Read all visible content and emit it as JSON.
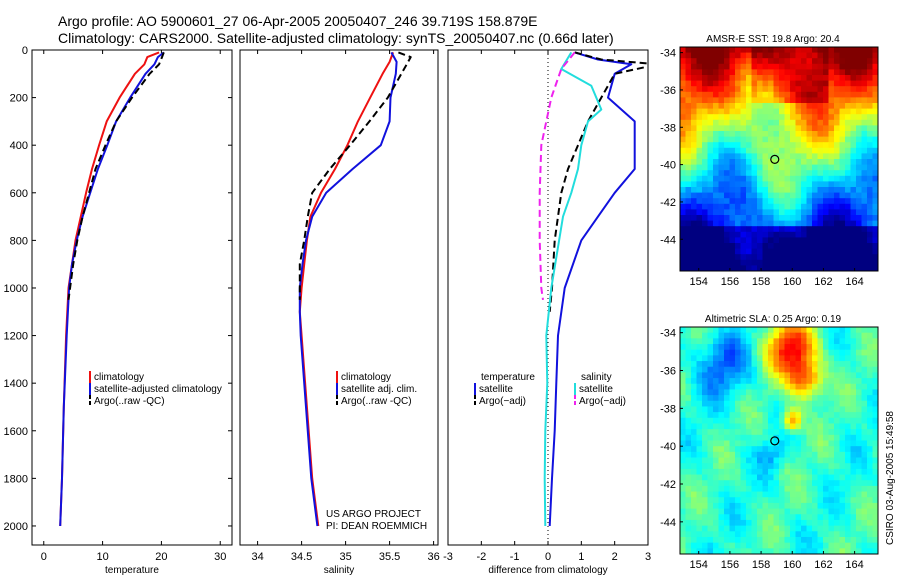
{
  "header": {
    "line1": "Argo profile: AO 5900601_27 06-Apr-2005 20050407_246 39.719S 158.879E",
    "line2": "Climatology: CARS2000. Satellite-adjusted climatology: synTS_20050407.nc (0.66d later)"
  },
  "side_note": "CSIRO 03-Aug-2005 15:49:58",
  "credits": [
    "US ARGO PROJECT",
    "PI: DEAN ROEMMICH"
  ],
  "colors": {
    "red": "#ee1111",
    "blue": "#1111dd",
    "black": "#000000",
    "cyan": "#22dddd",
    "magenta": "#ee22ee"
  },
  "chart_data": [
    {
      "type": "line",
      "id": "temperature",
      "xlabel": "temperature",
      "ylabel": "",
      "xlim": [
        -2,
        32
      ],
      "ylim": [
        2080,
        0
      ],
      "xticks": [
        0,
        10,
        20,
        30
      ],
      "yticks": [
        0,
        200,
        400,
        600,
        800,
        1000,
        1200,
        1400,
        1600,
        1800,
        2000
      ],
      "legend": {
        "position": "lower-right",
        "entries": [
          "climatology",
          "satellite-adjusted climatology",
          "Argo(..raw  -QC)"
        ]
      },
      "series": [
        {
          "name": "climatology",
          "color": "red",
          "dash": false,
          "x": [
            19.6,
            17.6,
            17.1,
            15.5,
            12.9,
            10.7,
            9.4,
            8.2,
            7.2,
            6.3,
            5.4,
            4.8,
            4.2,
            3.8,
            3.4,
            3.1,
            2.8
          ],
          "y": [
            10,
            30,
            60,
            100,
            200,
            300,
            400,
            500,
            600,
            700,
            800,
            900,
            1000,
            1200,
            1500,
            1800,
            2000
          ]
        },
        {
          "name": "satellite-adjusted climatology",
          "color": "blue",
          "dash": false,
          "x": [
            20.4,
            19.4,
            18.8,
            17.3,
            14.7,
            12.3,
            10.8,
            9.2,
            7.9,
            6.6,
            5.6,
            4.8,
            4.3,
            3.9,
            3.4,
            3.1,
            2.8
          ],
          "y": [
            10,
            30,
            60,
            100,
            200,
            300,
            400,
            500,
            600,
            700,
            800,
            900,
            1000,
            1200,
            1500,
            1800,
            2000
          ]
        },
        {
          "name": "Argo(..raw  -QC)",
          "color": "black",
          "dash": true,
          "x": [
            20.4,
            20.1,
            19.6,
            18.0,
            15.0,
            12.3,
            10.5,
            8.8,
            7.7,
            6.6,
            5.7,
            5.0,
            4.2
          ],
          "y": [
            10,
            30,
            60,
            100,
            200,
            300,
            400,
            500,
            600,
            700,
            800,
            900,
            1050
          ]
        }
      ]
    },
    {
      "type": "line",
      "id": "salinity",
      "xlabel": "salinity",
      "ylabel": "",
      "xlim": [
        33.8,
        36.05
      ],
      "ylim": [
        2080,
        0
      ],
      "xticks": [
        34,
        34.5,
        35,
        35.5,
        36
      ],
      "yticks": [],
      "legend": {
        "position": "lower-right",
        "entries": [
          "climatology",
          "satellite adj. clim.",
          "Argo(..raw  -QC)"
        ]
      },
      "series": [
        {
          "name": "climatology",
          "color": "red",
          "dash": false,
          "x": [
            35.54,
            35.5,
            35.42,
            35.28,
            35.14,
            35.02,
            34.88,
            34.72,
            34.6,
            34.56,
            34.53,
            34.5,
            34.48,
            34.5,
            34.56,
            34.62,
            34.69
          ],
          "y": [
            10,
            50,
            100,
            200,
            300,
            400,
            500,
            600,
            700,
            800,
            900,
            1000,
            1100,
            1200,
            1500,
            1800,
            2000
          ]
        },
        {
          "name": "satellite adj. clim.",
          "color": "blue",
          "dash": false,
          "x": [
            35.52,
            35.58,
            35.57,
            35.51,
            35.5,
            35.4,
            35.08,
            34.78,
            34.62,
            34.55,
            34.51,
            34.48,
            34.48,
            34.49,
            34.55,
            34.61,
            34.68
          ],
          "y": [
            10,
            50,
            100,
            200,
            300,
            400,
            500,
            600,
            700,
            800,
            900,
            1000,
            1100,
            1200,
            1500,
            1800,
            2000
          ]
        },
        {
          "name": "Argo(..raw  -QC)",
          "color": "black",
          "dash": true,
          "x": [
            35.6,
            35.74,
            35.68,
            35.48,
            35.27,
            35.05,
            34.82,
            34.62,
            34.57,
            34.53,
            34.48,
            34.48
          ],
          "y": [
            10,
            30,
            70,
            200,
            300,
            400,
            500,
            600,
            700,
            800,
            900,
            1050
          ]
        }
      ]
    },
    {
      "type": "line",
      "id": "difference",
      "xlabel": "difference from climatology",
      "ylabel": "",
      "xlim": [
        -3,
        3
      ],
      "ylim": [
        2080,
        0
      ],
      "xticks": [
        -3,
        -2,
        -1,
        0,
        1,
        2,
        3
      ],
      "yticks": [],
      "zero_line": true,
      "legend": {
        "position": "lower",
        "groups": [
          {
            "title": "temperature",
            "entries": [
              "satellite",
              "Argo(−adj)"
            ]
          },
          {
            "title": "salinity",
            "entries": [
              "satellite",
              "Argo(−adj)"
            ]
          }
        ]
      },
      "series": [
        {
          "name": "satellite",
          "group": "temperature",
          "color": "blue",
          "dash": false,
          "x": [
            0.8,
            1.5,
            2.5,
            2.0,
            1.8,
            2.6,
            2.6,
            2.6,
            2.0,
            1.5,
            1.0,
            0.5,
            0.3,
            0.25,
            0.2,
            0.12,
            0.05
          ],
          "y": [
            10,
            40,
            60,
            100,
            200,
            300,
            400,
            500,
            600,
            700,
            800,
            1000,
            1200,
            1400,
            1600,
            1800,
            2000
          ]
        },
        {
          "name": "Argo(−adj)",
          "group": "temperature",
          "color": "black",
          "dash": true,
          "x": [
            0.8,
            1.6,
            3.3,
            2.0,
            1.6,
            1.2,
            0.9,
            0.6,
            0.4,
            0.2,
            0.12,
            0.05
          ],
          "y": [
            10,
            40,
            60,
            100,
            200,
            300,
            400,
            500,
            600,
            800,
            1000,
            1100
          ]
        },
        {
          "name": "satellite",
          "group": "salinity",
          "color": "cyan",
          "dash": false,
          "x": [
            0.7,
            0.4,
            1.3,
            1.6,
            1.2,
            1.0,
            0.9,
            0.7,
            0.45,
            0.1,
            -0.05,
            -0.02,
            -0.08,
            -0.1,
            -0.08
          ],
          "y": [
            10,
            80,
            150,
            250,
            300,
            400,
            500,
            600,
            700,
            1000,
            1200,
            1400,
            1600,
            1800,
            2000
          ]
        },
        {
          "name": "Argo(−adj)",
          "group": "salinity",
          "color": "magenta",
          "dash": true,
          "x": [
            0.8,
            0.4,
            0.1,
            -0.2,
            -0.25,
            -0.25,
            -0.2,
            -0.15
          ],
          "y": [
            10,
            80,
            200,
            400,
            600,
            800,
            1000,
            1050
          ]
        }
      ]
    },
    {
      "type": "heatmap",
      "id": "sst_map",
      "title": "AMSR-E SST: 19.8 Argo: 20.4",
      "xlim": [
        152.8,
        165.5
      ],
      "ylim": [
        -45.7,
        -33.7
      ],
      "xticks": [
        154,
        156,
        158,
        160,
        162,
        164
      ],
      "yticks": [
        -34,
        -36,
        -38,
        -40,
        -42,
        -44
      ],
      "marker": {
        "lon": 158.879,
        "lat": -39.719
      }
    },
    {
      "type": "heatmap",
      "id": "sla_map",
      "title": "Altimetric SLA: 0.25 Argo: 0.19",
      "xlim": [
        152.8,
        165.5
      ],
      "ylim": [
        -45.7,
        -33.7
      ],
      "xticks": [
        154,
        156,
        158,
        160,
        162,
        164
      ],
      "yticks": [
        -34,
        -36,
        -38,
        -40,
        -42,
        -44
      ],
      "marker": {
        "lon": 158.879,
        "lat": -39.719
      }
    }
  ]
}
